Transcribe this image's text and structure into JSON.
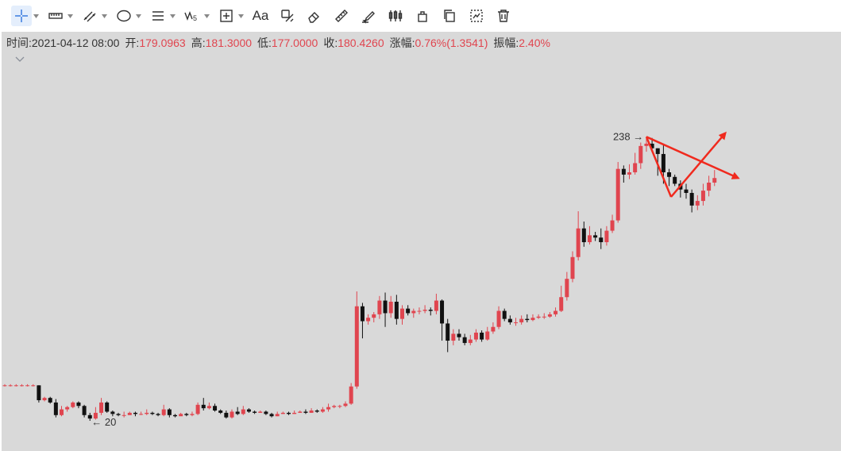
{
  "toolbar": {
    "tools": [
      {
        "name": "crosshair-tool",
        "icon": "crosshair-icon",
        "dropdown": true,
        "active": true
      },
      {
        "name": "ruler-grid-tool",
        "icon": "horizontal-ruler-icon",
        "dropdown": true
      },
      {
        "name": "parallel-lines-tool",
        "icon": "parallel-lines-icon",
        "dropdown": true
      },
      {
        "name": "ellipse-tool",
        "icon": "ellipse-icon",
        "dropdown": true
      },
      {
        "name": "fib-lines-tool",
        "icon": "horizontal-lines-icon",
        "dropdown": true
      },
      {
        "name": "wave-tool",
        "icon": "wave-icon",
        "dropdown": true
      },
      {
        "name": "measure-tool",
        "icon": "measure-box-icon",
        "dropdown": true
      },
      {
        "name": "text-tool",
        "icon": "text-icon",
        "label": "Aa"
      },
      {
        "name": "annotation-tool",
        "icon": "annotation-icon"
      },
      {
        "name": "eraser-tool",
        "icon": "eraser-icon"
      },
      {
        "name": "ruler-tool",
        "icon": "ruler-icon"
      },
      {
        "name": "brush-tool",
        "icon": "brush-icon"
      },
      {
        "name": "candles-tool",
        "icon": "candles-icon"
      },
      {
        "name": "lock-tool",
        "icon": "lock-icon"
      },
      {
        "name": "copy-tool",
        "icon": "copy-icon"
      },
      {
        "name": "settings-tool",
        "icon": "settings-icon"
      },
      {
        "name": "delete-tool",
        "icon": "trash-icon"
      }
    ]
  },
  "info": {
    "time_label": "时间:",
    "time_value": "2021-04-12 08:00",
    "open_label": "开:",
    "open_value": "179.0963",
    "high_label": "高:",
    "high_value": "181.3000",
    "low_label": "低:",
    "low_value": "177.0000",
    "close_label": "收:",
    "close_value": "180.4260",
    "change_label": "涨幅:",
    "change_value": "0.76%(1.3541)",
    "amplitude_label": "振幅:",
    "amplitude_value": "2.40%"
  },
  "colors": {
    "up": "#e0454f",
    "down": "#111111",
    "annotation": "#f02a1e",
    "background": "#d9d9d9"
  },
  "chart_data": {
    "type": "candlestick",
    "y_range": [
      0,
      260
    ],
    "max_label": "238",
    "min_label": "20",
    "candles": [
      [
        31,
        31,
        32,
        30
      ],
      [
        31,
        31,
        32,
        30
      ],
      [
        31,
        31,
        32,
        30
      ],
      [
        31,
        31,
        32,
        30
      ],
      [
        31,
        31,
        32,
        30
      ],
      [
        31,
        31,
        32,
        30
      ],
      [
        31,
        18,
        31,
        16
      ],
      [
        18,
        20,
        21,
        17
      ],
      [
        20,
        16,
        21,
        15
      ],
      [
        16,
        5,
        19,
        3
      ],
      [
        5,
        10,
        13,
        4
      ],
      [
        10,
        12,
        13,
        8
      ],
      [
        12,
        16,
        17,
        11
      ],
      [
        16,
        13,
        17,
        11
      ],
      [
        13,
        5,
        14,
        3
      ],
      [
        5,
        2,
        7,
        0
      ],
      [
        2,
        7,
        12,
        1
      ],
      [
        7,
        16,
        20,
        5
      ],
      [
        16,
        8,
        17,
        7
      ],
      [
        8,
        6,
        9,
        4
      ],
      [
        6,
        5,
        7,
        4
      ],
      [
        5,
        5,
        8,
        3
      ],
      [
        5,
        7,
        8,
        6
      ],
      [
        7,
        6,
        8,
        4
      ],
      [
        6,
        6,
        8,
        5
      ],
      [
        6,
        7,
        10,
        5
      ],
      [
        7,
        6,
        8,
        5
      ],
      [
        6,
        5,
        7,
        4
      ],
      [
        5,
        10,
        14,
        4
      ],
      [
        10,
        5,
        11,
        3
      ],
      [
        5,
        4,
        6,
        3
      ],
      [
        4,
        6,
        7,
        5
      ],
      [
        6,
        5,
        7,
        4
      ],
      [
        5,
        6,
        8,
        4
      ],
      [
        6,
        14,
        16,
        5
      ],
      [
        14,
        11,
        20,
        9
      ],
      [
        11,
        13,
        16,
        10
      ],
      [
        13,
        9,
        15,
        8
      ],
      [
        9,
        7,
        10,
        6
      ],
      [
        7,
        3,
        9,
        2
      ],
      [
        3,
        8,
        10,
        2
      ],
      [
        8,
        6,
        12,
        5
      ],
      [
        6,
        10,
        13,
        5
      ],
      [
        10,
        8,
        11,
        7
      ],
      [
        8,
        7,
        9,
        6
      ],
      [
        7,
        8,
        9,
        7
      ],
      [
        8,
        6,
        9,
        5
      ],
      [
        6,
        4,
        7,
        3
      ],
      [
        4,
        6,
        8,
        4
      ],
      [
        6,
        7,
        8,
        6
      ],
      [
        7,
        6,
        8,
        5
      ],
      [
        6,
        7,
        9,
        6
      ],
      [
        7,
        8,
        9,
        7
      ],
      [
        8,
        7,
        10,
        6
      ],
      [
        7,
        9,
        11,
        7
      ],
      [
        9,
        8,
        10,
        7
      ],
      [
        8,
        10,
        12,
        7
      ],
      [
        10,
        12,
        15,
        8
      ],
      [
        12,
        13,
        14,
        11
      ],
      [
        13,
        13,
        14,
        11
      ],
      [
        13,
        15,
        17,
        12
      ],
      [
        15,
        30,
        33,
        14
      ],
      [
        30,
        100,
        113,
        28
      ],
      [
        100,
        87,
        103,
        72
      ],
      [
        87,
        90,
        93,
        84
      ],
      [
        90,
        93,
        95,
        86
      ],
      [
        93,
        105,
        109,
        89
      ],
      [
        105,
        94,
        112,
        82
      ],
      [
        94,
        104,
        109,
        90
      ],
      [
        104,
        89,
        110,
        84
      ],
      [
        89,
        98,
        101,
        84
      ],
      [
        98,
        94,
        101,
        92
      ],
      [
        94,
        96,
        98,
        90
      ],
      [
        96,
        96,
        99,
        93
      ],
      [
        96,
        97,
        101,
        94
      ],
      [
        97,
        96,
        99,
        92
      ],
      [
        96,
        105,
        111,
        93
      ],
      [
        105,
        85,
        106,
        70
      ],
      [
        85,
        70,
        89,
        60
      ],
      [
        70,
        76,
        80,
        66
      ],
      [
        76,
        73,
        80,
        70
      ],
      [
        73,
        68,
        76,
        66
      ],
      [
        68,
        71,
        75,
        66
      ],
      [
        71,
        77,
        80,
        69
      ],
      [
        77,
        71,
        79,
        69
      ],
      [
        71,
        78,
        82,
        70
      ],
      [
        78,
        82,
        86,
        76
      ],
      [
        82,
        96,
        100,
        80
      ],
      [
        96,
        89,
        98,
        87
      ],
      [
        89,
        86,
        92,
        84
      ],
      [
        86,
        86,
        90,
        83
      ],
      [
        86,
        89,
        92,
        84
      ],
      [
        89,
        88,
        93,
        86
      ],
      [
        88,
        90,
        93,
        87
      ],
      [
        90,
        91,
        93,
        89
      ],
      [
        91,
        91,
        94,
        89
      ],
      [
        91,
        93,
        95,
        90
      ],
      [
        93,
        96,
        99,
        91
      ],
      [
        96,
        108,
        118,
        95
      ],
      [
        108,
        124,
        130,
        105
      ],
      [
        124,
        143,
        148,
        121
      ],
      [
        143,
        168,
        183,
        140
      ],
      [
        168,
        156,
        174,
        152
      ],
      [
        156,
        162,
        170,
        154
      ],
      [
        162,
        160,
        165,
        157
      ],
      [
        160,
        156,
        168,
        150
      ],
      [
        156,
        166,
        170,
        153
      ],
      [
        166,
        175,
        180,
        164
      ],
      [
        175,
        220,
        226,
        173
      ],
      [
        220,
        215,
        223,
        208
      ],
      [
        215,
        217,
        224,
        211
      ],
      [
        217,
        225,
        234,
        215
      ],
      [
        225,
        240,
        243,
        220
      ],
      [
        240,
        242,
        248,
        235
      ],
      [
        242,
        238,
        247,
        236
      ],
      [
        238,
        233,
        238,
        214
      ],
      [
        233,
        217,
        242,
        207
      ],
      [
        217,
        213,
        220,
        205
      ],
      [
        213,
        207,
        215,
        205
      ],
      [
        207,
        202,
        210,
        195
      ],
      [
        202,
        199,
        207,
        194
      ],
      [
        199,
        188,
        202,
        182
      ],
      [
        188,
        192,
        197,
        184
      ],
      [
        192,
        201,
        207,
        188
      ],
      [
        201,
        208,
        214,
        196
      ],
      [
        208,
        212,
        219,
        205
      ]
    ]
  }
}
